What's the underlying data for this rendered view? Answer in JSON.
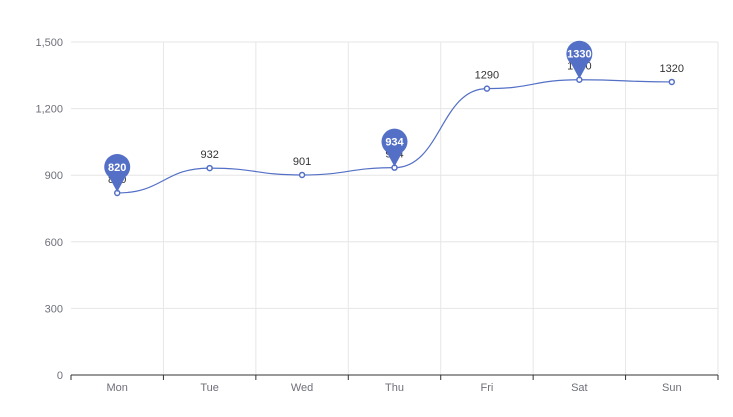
{
  "chart_data": {
    "type": "line",
    "smooth": true,
    "categories": [
      "Mon",
      "Tue",
      "Wed",
      "Thu",
      "Fri",
      "Sat",
      "Sun"
    ],
    "series": [
      {
        "values": [
          820,
          932,
          901,
          934,
          1290,
          1330,
          1320
        ],
        "color": "#5470c6",
        "show_labels": true,
        "pins": [
          {
            "category": "Mon",
            "value": 820
          },
          {
            "category": "Thu",
            "value": 934
          },
          {
            "category": "Sat",
            "value": 1330
          }
        ]
      }
    ],
    "ylim": [
      0,
      1500
    ],
    "y_ticks": [
      0,
      300,
      600,
      900,
      1200,
      1500
    ],
    "y_tick_labels": [
      "0",
      "300",
      "600",
      "900",
      "1,200",
      "1,500"
    ],
    "grid": true,
    "colors": {
      "grid": "#e6e6e6",
      "axis": "#333333",
      "pin": "#5470c6"
    }
  }
}
